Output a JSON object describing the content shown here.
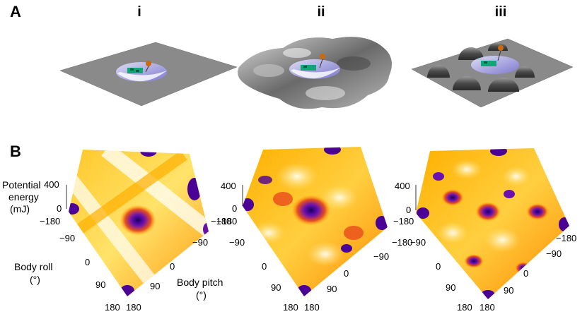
{
  "panels": {
    "A": {
      "letter": "A",
      "columns": [
        "i",
        "ii",
        "iii"
      ]
    },
    "B": {
      "letter": "B"
    }
  },
  "axes": {
    "z_label_line1": "Potential",
    "z_label_line2": "energy",
    "z_label_line3": "(mJ)",
    "z_ticks": [
      "400",
      "0"
    ],
    "roll_label_line1": "Body roll",
    "roll_label_line2": "(°)",
    "pitch_label_line1": "Body pitch",
    "pitch_label_line2": "(°)",
    "roll_ticks": [
      "−180",
      "−90",
      "0",
      "90",
      "180"
    ],
    "pitch_ticks": [
      "180",
      "90",
      "0",
      "−90",
      "−180"
    ]
  },
  "colors": {
    "surface_high": "#fffbe0",
    "surface_mid": "#ffb300",
    "surface_low": "#e84b1c",
    "surface_min": "#4b0096",
    "terrain_gray": "#8a8a8a"
  }
}
